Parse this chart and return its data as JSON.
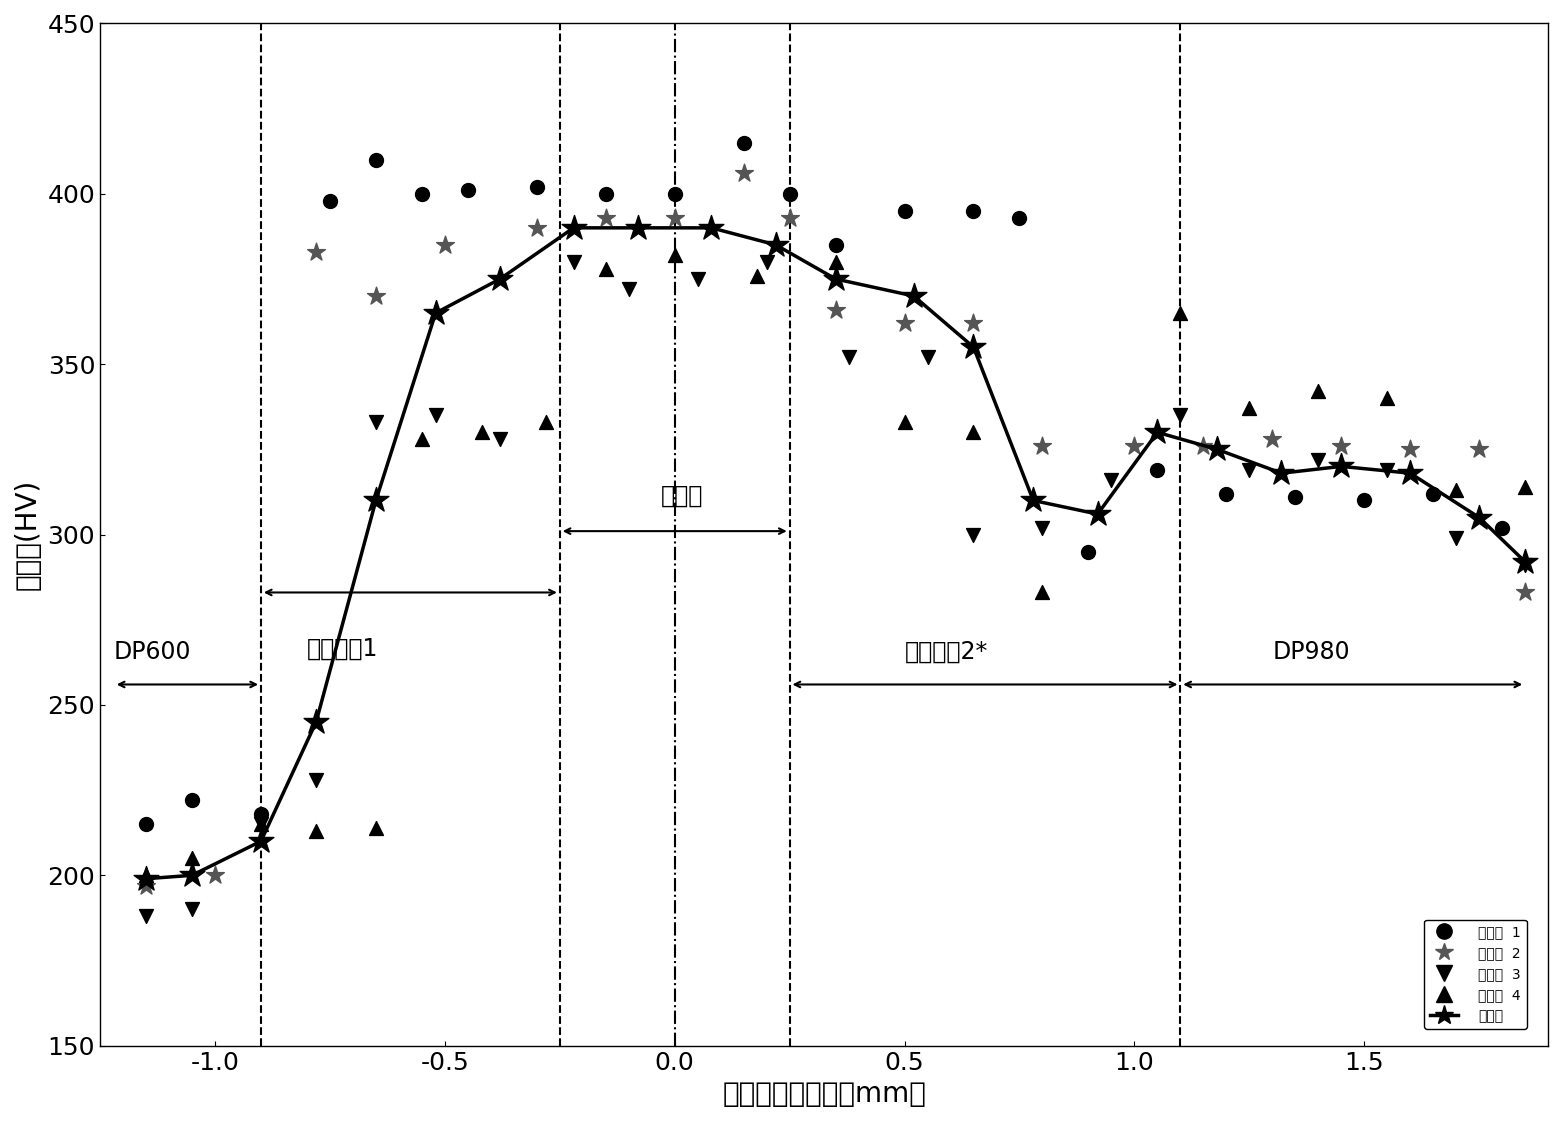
{
  "line1_x": [
    -1.15,
    -1.05,
    -0.9,
    -0.75,
    -0.65,
    -0.55,
    -0.45,
    -0.3,
    -0.15,
    0.0,
    0.15,
    0.25,
    0.35,
    0.5,
    0.65,
    0.75,
    0.9,
    1.05,
    1.2,
    1.35,
    1.5,
    1.65,
    1.8
  ],
  "line1_y": [
    215,
    222,
    218,
    398,
    410,
    400,
    401,
    402,
    400,
    400,
    415,
    400,
    385,
    395,
    395,
    393,
    295,
    319,
    312,
    311,
    310,
    312,
    302
  ],
  "line2_x": [
    -1.15,
    -1.0,
    -0.78,
    -0.65,
    -0.5,
    -0.3,
    -0.15,
    0.0,
    0.15,
    0.25,
    0.35,
    0.5,
    0.65,
    0.8,
    1.0,
    1.15,
    1.3,
    1.45,
    1.6,
    1.75,
    1.85
  ],
  "line2_y": [
    197,
    200,
    383,
    370,
    385,
    390,
    393,
    393,
    406,
    393,
    366,
    362,
    362,
    326,
    326,
    326,
    328,
    326,
    325,
    325,
    283
  ],
  "line3_x": [
    -1.15,
    -1.05,
    -0.9,
    -0.78,
    -0.65,
    -0.52,
    -0.38,
    -0.22,
    -0.1,
    0.05,
    0.2,
    0.38,
    0.55,
    0.65,
    0.8,
    0.95,
    1.1,
    1.25,
    1.4,
    1.55,
    1.7,
    1.85
  ],
  "line3_y": [
    188,
    190,
    215,
    228,
    333,
    335,
    328,
    380,
    372,
    375,
    380,
    352,
    352,
    300,
    302,
    316,
    335,
    319,
    322,
    319,
    299,
    291
  ],
  "line4_x": [
    -1.15,
    -1.05,
    -0.9,
    -0.78,
    -0.65,
    -0.55,
    -0.42,
    -0.28,
    -0.15,
    0.0,
    0.18,
    0.35,
    0.5,
    0.65,
    0.8,
    1.1,
    1.25,
    1.4,
    1.55,
    1.7,
    1.85
  ],
  "line4_y": [
    200,
    205,
    215,
    213,
    214,
    328,
    330,
    333,
    378,
    382,
    376,
    380,
    333,
    330,
    283,
    365,
    337,
    342,
    340,
    313,
    314
  ],
  "avg_x": [
    -1.15,
    -1.05,
    -0.9,
    -0.78,
    -0.65,
    -0.52,
    -0.38,
    -0.22,
    -0.08,
    0.08,
    0.22,
    0.35,
    0.52,
    0.65,
    0.78,
    0.92,
    1.05,
    1.18,
    1.32,
    1.45,
    1.6,
    1.75,
    1.85
  ],
  "avg_y": [
    199,
    200,
    210,
    245,
    310,
    365,
    375,
    390,
    390,
    390,
    385,
    375,
    370,
    355,
    310,
    306,
    330,
    325,
    318,
    320,
    318,
    305,
    292
  ],
  "dashed_lines": [
    -0.9,
    -0.25,
    0.25,
    1.1
  ],
  "dashdot_line": 0.0,
  "ylabel": "硬度値(HV)",
  "xlabel": "离焊缝中心距离（mm）",
  "xlim": [
    -1.25,
    1.9
  ],
  "ylim": [
    150,
    450
  ],
  "yticks": [
    150,
    200,
    250,
    300,
    350,
    400,
    450
  ],
  "xticks": [
    -1.0,
    -0.5,
    0.0,
    0.5,
    1.0,
    1.5
  ],
  "legend_labels": [
    "测试线  1",
    "测试线  2",
    "测试线  3",
    "测试线  4",
    "平均値"
  ],
  "fontsize": 20,
  "tick_fontsize": 18,
  "annot_fontsize": 17
}
